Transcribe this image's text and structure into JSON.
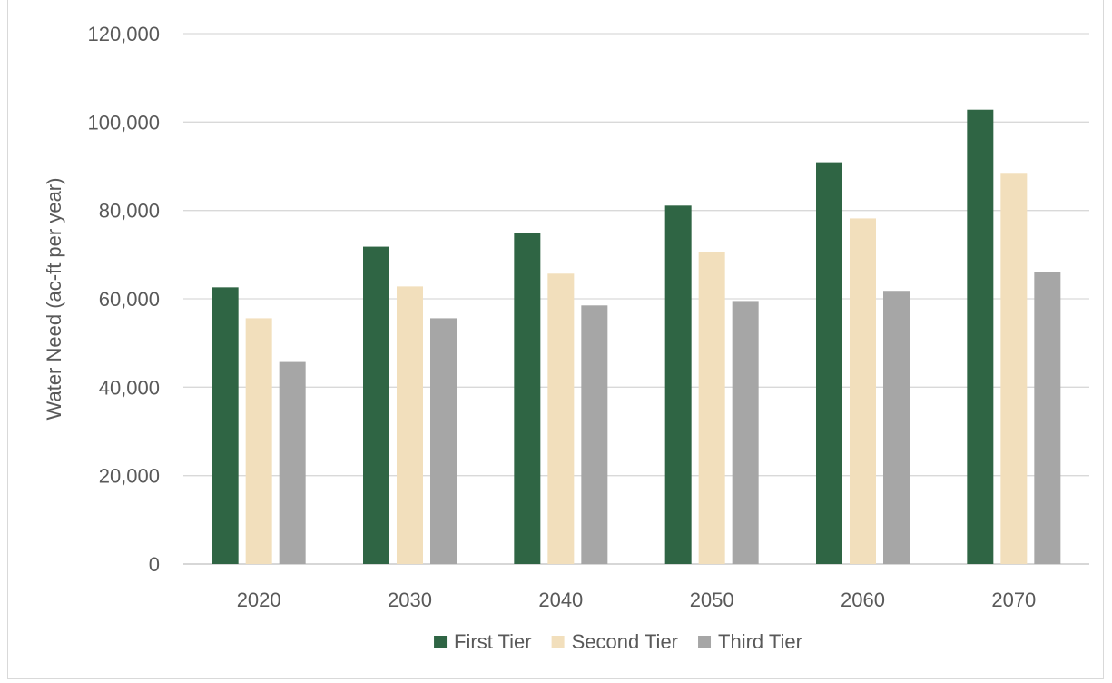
{
  "chart_data": {
    "type": "bar",
    "title": "",
    "xlabel": "",
    "ylabel": "Water Need (ac-ft  per year)",
    "ylim": [
      0,
      120000
    ],
    "ytick_values": [
      0,
      20000,
      40000,
      60000,
      80000,
      100000,
      120000
    ],
    "ytick_labels": [
      "0",
      "20,000",
      "40,000",
      "60,000",
      "80,000",
      "100,000",
      "120,000"
    ],
    "grid": true,
    "legend_position": "bottom",
    "categories": [
      "2020",
      "2030",
      "2040",
      "2050",
      "2060",
      "2070"
    ],
    "series": [
      {
        "name": "First Tier",
        "color": "#2f6544",
        "values": [
          62600,
          71800,
          75000,
          81100,
          90900,
          102800
        ]
      },
      {
        "name": "Second Tier",
        "color": "#f2dfbc",
        "values": [
          55600,
          62800,
          65700,
          70600,
          78200,
          88300
        ]
      },
      {
        "name": "Third Tier",
        "color": "#a6a6a6",
        "values": [
          45700,
          55600,
          58500,
          59500,
          61800,
          66100
        ]
      }
    ]
  }
}
